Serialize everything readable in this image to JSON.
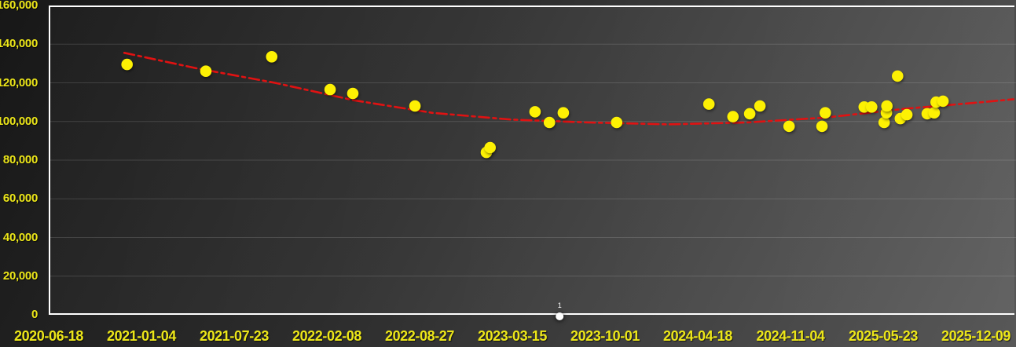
{
  "chart_data": {
    "type": "scatter",
    "title": "",
    "xlabel": "",
    "ylabel": "",
    "legend": "none",
    "grid": "horizontal",
    "x_axis": {
      "type": "date",
      "start_date": "2020-06-18",
      "end_date": "2025-12-09",
      "tick_interval_days": 200,
      "tick_labels": [
        "2020-06-18",
        "2021-01-04",
        "2021-07-23",
        "2022-02-08",
        "2022-08-27",
        "2023-03-15",
        "2023-10-01",
        "2024-04-18",
        "2024-11-04",
        "2025-05-23",
        "2025-12-09"
      ]
    },
    "y_axis": {
      "min": 0,
      "max": 160000,
      "tick_step": 20000,
      "tick_labels": [
        "0",
        "20,000",
        "40,000",
        "60,000",
        "80,000",
        "100,000",
        "120,000",
        "140,000",
        "160,000"
      ]
    },
    "series": [
      {
        "name": "scatter-points",
        "marker": "circle",
        "marker_color": "#fdf103",
        "points": [
          {
            "date": "2020-12-04",
            "value": 129500
          },
          {
            "date": "2021-05-23",
            "value": 126000
          },
          {
            "date": "2021-10-12",
            "value": 133500
          },
          {
            "date": "2022-02-15",
            "value": 116500
          },
          {
            "date": "2022-04-05",
            "value": 114500
          },
          {
            "date": "2022-08-17",
            "value": 108000
          },
          {
            "date": "2023-01-18",
            "value": 84000
          },
          {
            "date": "2023-01-26",
            "value": 86500
          },
          {
            "date": "2023-05-03",
            "value": 105000
          },
          {
            "date": "2023-06-03",
            "value": 99500
          },
          {
            "date": "2023-07-03",
            "value": 104500
          },
          {
            "date": "2023-10-26",
            "value": 99500
          },
          {
            "date": "2024-05-12",
            "value": 109000
          },
          {
            "date": "2024-07-03",
            "value": 102500
          },
          {
            "date": "2024-08-08",
            "value": 104000
          },
          {
            "date": "2024-08-30",
            "value": 108000
          },
          {
            "date": "2024-11-01",
            "value": 97500
          },
          {
            "date": "2025-01-11",
            "value": 97500
          },
          {
            "date": "2025-01-18",
            "value": 104500
          },
          {
            "date": "2025-04-12",
            "value": 107500
          },
          {
            "date": "2025-04-28",
            "value": 107500
          },
          {
            "date": "2025-05-25",
            "value": 99500
          },
          {
            "date": "2025-05-30",
            "value": 104500
          },
          {
            "date": "2025-05-31",
            "value": 108000
          },
          {
            "date": "2025-06-23",
            "value": 123500
          },
          {
            "date": "2025-06-29",
            "value": 101500
          },
          {
            "date": "2025-07-13",
            "value": 103500
          },
          {
            "date": "2025-08-26",
            "value": 104000
          },
          {
            "date": "2025-09-10",
            "value": 104500
          },
          {
            "date": "2025-09-14",
            "value": 110000
          },
          {
            "date": "2025-09-29",
            "value": 110500
          }
        ]
      },
      {
        "name": "labeled-point",
        "marker": "circle",
        "marker_color": "#ffffff",
        "points": [
          {
            "date": "2023-06-25",
            "value": 1,
            "label": "1"
          }
        ]
      }
    ],
    "trendline": {
      "style": "dash-dot",
      "color": "#e01212",
      "points": [
        {
          "date": "2020-11-28",
          "value": 135500
        },
        {
          "date": "2021-05-03",
          "value": 127500
        },
        {
          "date": "2021-10-19",
          "value": 120000
        },
        {
          "date": "2022-04-07",
          "value": 111000
        },
        {
          "date": "2022-09-23",
          "value": 104500
        },
        {
          "date": "2023-03-12",
          "value": 101000
        },
        {
          "date": "2023-08-28",
          "value": 99500
        },
        {
          "date": "2024-02-14",
          "value": 98500
        },
        {
          "date": "2024-08-01",
          "value": 99500
        },
        {
          "date": "2025-01-18",
          "value": 102000
        },
        {
          "date": "2025-07-06",
          "value": 106500
        },
        {
          "date": "2025-12-23",
          "value": 110000
        },
        {
          "date": "2026-02-28",
          "value": 111500
        }
      ]
    }
  },
  "colors": {
    "axis_label": "#ece619",
    "marker": "#fdf103",
    "trendline": "#e01212",
    "axis_line": "#ffffff",
    "background_dark": "#171717",
    "background_light": "#585858"
  }
}
